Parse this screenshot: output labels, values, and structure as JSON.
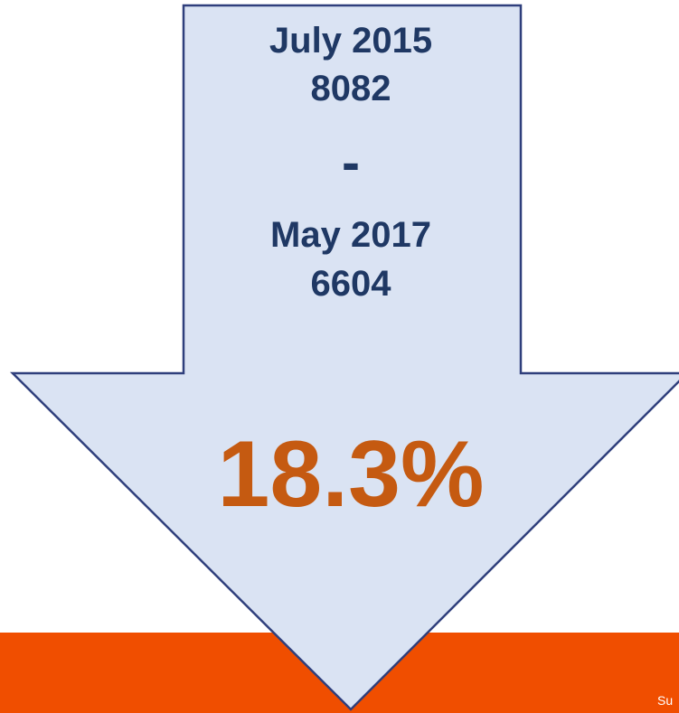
{
  "arrow": {
    "start_label": "July 2015",
    "start_value": "8082",
    "separator": "-",
    "end_label": "May 2017",
    "end_value": "6604",
    "change": "18.3%"
  },
  "footer": {
    "text": "Su"
  }
}
